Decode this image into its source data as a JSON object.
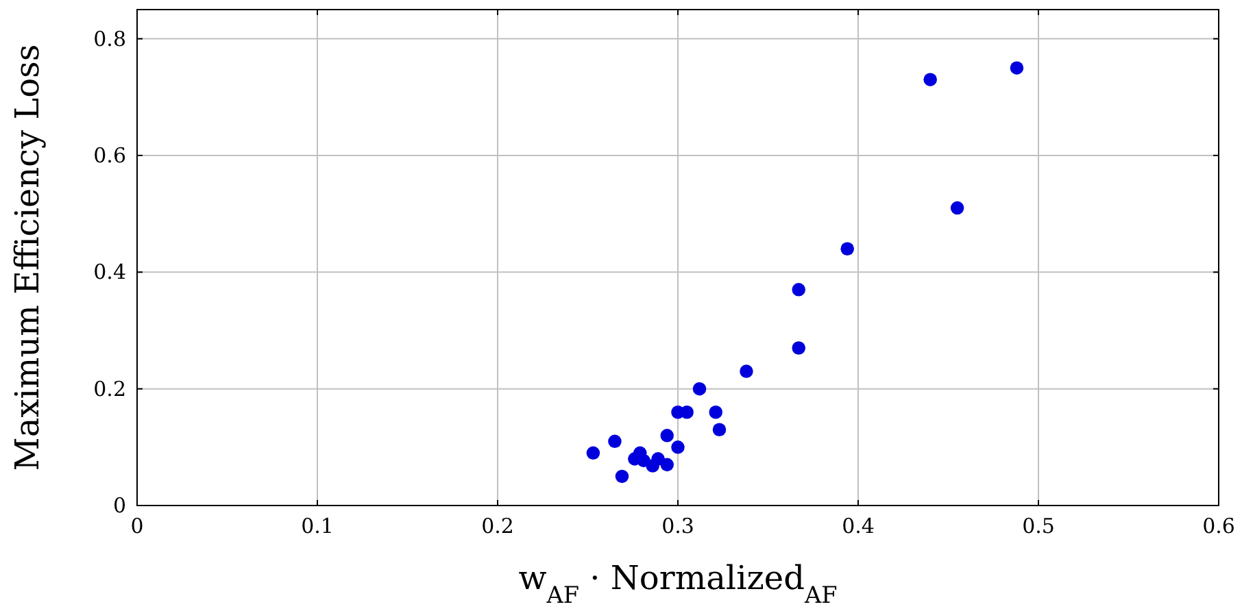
{
  "chart_data": {
    "type": "scatter",
    "xlabel": "w$_{AF}$ · Normalized$_{AF}$",
    "ylabel": "Maximum Efficiency Loss",
    "x": [
      0.253,
      0.265,
      0.269,
      0.276,
      0.279,
      0.281,
      0.286,
      0.289,
      0.294,
      0.294,
      0.3,
      0.3,
      0.305,
      0.312,
      0.321,
      0.323,
      0.338,
      0.367,
      0.367,
      0.394,
      0.44,
      0.455,
      0.488
    ],
    "series": [
      {
        "color": "#0000dd",
        "values": [
          0.09,
          0.11,
          0.05,
          0.08,
          0.09,
          0.077,
          0.068,
          0.08,
          0.07,
          0.12,
          0.1,
          0.16,
          0.16,
          0.2,
          0.16,
          0.13,
          0.23,
          0.27,
          0.37,
          0.44,
          0.73,
          0.51,
          0.75
        ]
      }
    ],
    "xlim": [
      0,
      0.6
    ],
    "xticks": [
      0,
      0.1,
      0.2,
      0.3,
      0.4,
      0.5,
      0.6
    ],
    "ylim": [
      0,
      0.85
    ],
    "yticks": [
      0,
      0.2,
      0.4,
      0.6,
      0.8
    ],
    "grid": true,
    "marker": "circle"
  }
}
